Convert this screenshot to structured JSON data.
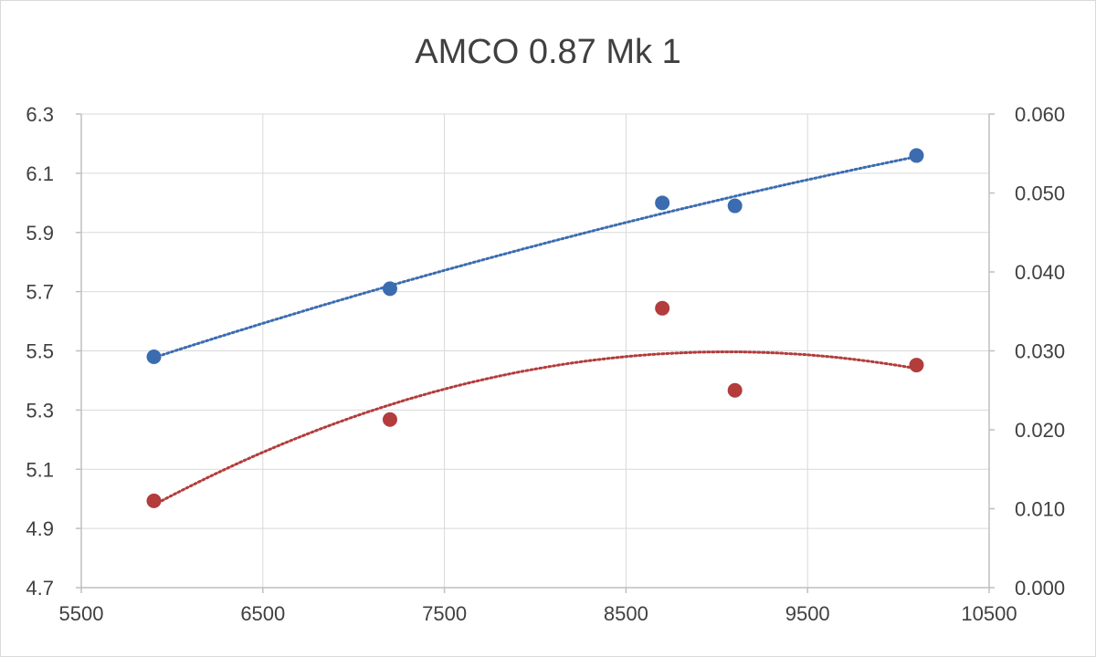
{
  "chart_data": {
    "type": "scatter",
    "title": "AMCO 0.87 Mk 1",
    "xlabel": "",
    "ylabel": "",
    "y2label": "",
    "xlim": [
      5500,
      10500
    ],
    "ylim": [
      4.7,
      6.3
    ],
    "y2lim": [
      0.0,
      0.06
    ],
    "x_ticks": [
      "5500",
      "6500",
      "7500",
      "8500",
      "9500",
      "10500"
    ],
    "y_ticks": [
      "4.7",
      "4.9",
      "5.1",
      "5.3",
      "5.5",
      "5.7",
      "5.9",
      "6.1",
      "6.3"
    ],
    "y2_ticks": [
      "0.000",
      "0.010",
      "0.020",
      "0.030",
      "0.040",
      "0.050",
      "0.060"
    ],
    "x_tick_values": [
      5500,
      6500,
      7500,
      8500,
      9500,
      10500
    ],
    "y_tick_values": [
      4.7,
      4.9,
      5.1,
      5.3,
      5.5,
      5.7,
      5.9,
      6.1,
      6.3
    ],
    "y2_tick_values": [
      0.0,
      0.01,
      0.02,
      0.03,
      0.04,
      0.05,
      0.06
    ],
    "grid": true,
    "legend": "none",
    "series": [
      {
        "axis": "left",
        "color": "#3b6cb0",
        "x": [
          5900,
          7200,
          8700,
          9100,
          10100
        ],
        "y": [
          5.48,
          5.71,
          6.0,
          5.99,
          6.16
        ],
        "trendline": "dotted"
      },
      {
        "axis": "right",
        "color": "#b33c3c",
        "x": [
          5900,
          7200,
          8700,
          9100,
          10100
        ],
        "y": [
          0.011,
          0.0213,
          0.0354,
          0.025,
          0.0282
        ],
        "trendline": "dotted"
      }
    ]
  }
}
